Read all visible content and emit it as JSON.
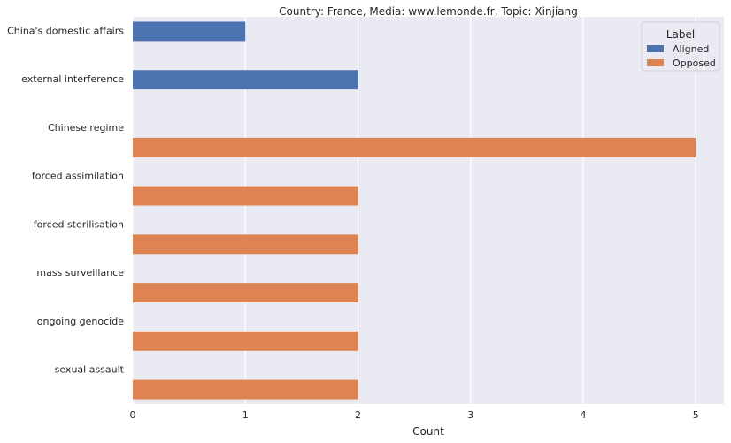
{
  "chart_data": {
    "type": "bar",
    "orientation": "horizontal",
    "title": "Country: France, Media: www.lemonde.fr, Topic: Xinjiang",
    "xlabel": "Count",
    "ylabel": "",
    "categories": [
      "China's domestic affairs",
      "external interference",
      "Chinese regime",
      "forced assimilation",
      "forced sterilisation",
      "mass surveillance",
      "ongoing genocide",
      "sexual assault"
    ],
    "series": [
      {
        "name": "Aligned",
        "color": "#4c72b0",
        "values": [
          1,
          2,
          0,
          0,
          0,
          0,
          0,
          0
        ]
      },
      {
        "name": "Opposed",
        "color": "#dd8452",
        "values": [
          0,
          0,
          5,
          2,
          2,
          2,
          2,
          2
        ]
      }
    ],
    "xlim": [
      0,
      5.25
    ],
    "xticks": [
      0,
      1,
      2,
      3,
      4,
      5
    ],
    "grid": true,
    "legend": {
      "title": "Label",
      "placement": "top-right"
    }
  }
}
